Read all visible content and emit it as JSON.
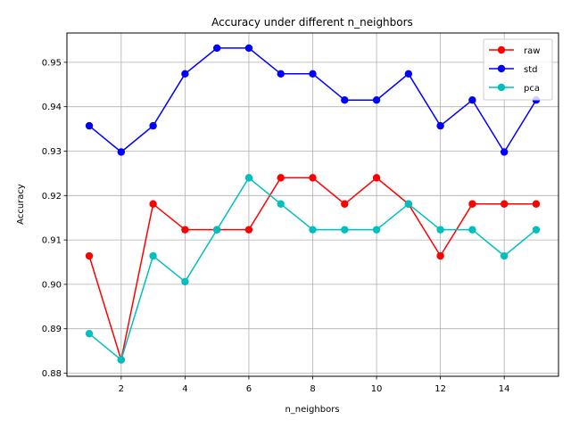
{
  "chart_data": {
    "type": "line",
    "title": "Accuracy under different n_neighbors",
    "xlabel": "n_neighbors",
    "ylabel": "Accuracy",
    "x": [
      1,
      2,
      3,
      4,
      5,
      6,
      7,
      8,
      9,
      10,
      11,
      12,
      13,
      14,
      15
    ],
    "xlim": [
      0.3,
      15.7
    ],
    "ylim": [
      0.8793,
      0.9566
    ],
    "xticks": [
      2,
      4,
      6,
      8,
      10,
      12,
      14
    ],
    "yticks": [
      0.88,
      0.89,
      0.9,
      0.91,
      0.92,
      0.93,
      0.94,
      0.95
    ],
    "ytick_labels": [
      "0.88",
      "0.89",
      "0.90",
      "0.91",
      "0.92",
      "0.93",
      "0.94",
      "0.95"
    ],
    "grid": true,
    "legend_position": "top-right",
    "series": [
      {
        "name": "raw",
        "color": "#ff0000",
        "values": [
          0.9064,
          0.883,
          0.9181,
          0.9123,
          0.9123,
          0.9123,
          0.924,
          0.924,
          0.9181,
          0.924,
          0.9181,
          0.9064,
          0.9181,
          0.9181,
          0.9181
        ]
      },
      {
        "name": "std",
        "color": "#0000ff",
        "values": [
          0.9357,
          0.9298,
          0.9357,
          0.9474,
          0.9532,
          0.9532,
          0.9474,
          0.9474,
          0.9415,
          0.9415,
          0.9474,
          0.9357,
          0.9415,
          0.9298,
          0.9415
        ]
      },
      {
        "name": "pca",
        "color": "#00bfbf",
        "values": [
          0.8889,
          0.883,
          0.9064,
          0.9006,
          0.9123,
          0.924,
          0.9181,
          0.9123,
          0.9123,
          0.9123,
          0.9181,
          0.9123,
          0.9123,
          0.9064,
          0.9123
        ]
      }
    ]
  }
}
